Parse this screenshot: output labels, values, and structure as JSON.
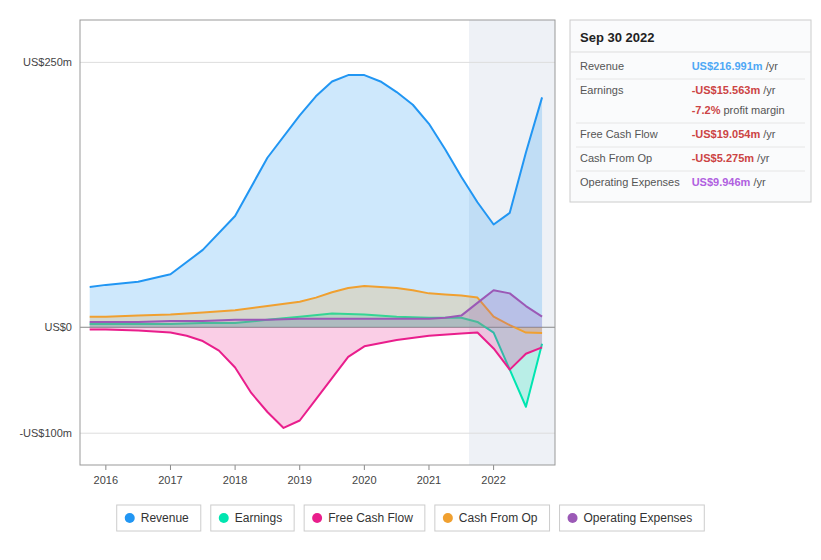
{
  "chart_data": {
    "type": "area",
    "xlim": [
      2015.6,
      2022.95
    ],
    "ylim": [
      -130,
      290
    ],
    "xticks": [
      2016,
      2017,
      2018,
      2019,
      2020,
      2021,
      2022
    ],
    "yticks": [
      {
        "value": -100,
        "label": "-US$100m"
      },
      {
        "value": 0,
        "label": "US$0"
      },
      {
        "value": 250,
        "label": "US$250m"
      }
    ],
    "grid": true,
    "legend": "bottom",
    "highlight_x": [
      2021.62,
      2022.95
    ],
    "series": [
      {
        "name": "Revenue",
        "color": "#2196F3",
        "x": [
          2015.75,
          2016.0,
          2016.5,
          2017.0,
          2017.5,
          2018.0,
          2018.5,
          2019.0,
          2019.25,
          2019.5,
          2019.75,
          2020.0,
          2020.25,
          2020.5,
          2020.75,
          2021.0,
          2021.25,
          2021.5,
          2021.75,
          2022.0,
          2022.25,
          2022.5,
          2022.75
        ],
        "values": [
          38,
          40,
          43,
          50,
          73,
          105,
          160,
          200,
          218,
          232,
          238,
          238,
          232,
          222,
          210,
          192,
          168,
          142,
          118,
          97,
          108,
          165,
          217
        ]
      },
      {
        "name": "Earnings",
        "color": "#00e5b0",
        "x": [
          2015.75,
          2016.0,
          2016.5,
          2017.0,
          2017.5,
          2018.0,
          2018.5,
          2019.0,
          2019.5,
          2020.0,
          2020.5,
          2021.0,
          2021.5,
          2021.75,
          2022.0,
          2022.25,
          2022.5,
          2022.75
        ],
        "values": [
          3,
          3,
          3,
          3,
          4,
          4,
          7,
          10,
          13,
          12,
          10,
          9,
          9,
          5,
          -5,
          -40,
          -75,
          -15.6
        ]
      },
      {
        "name": "Free Cash Flow",
        "color": "#e91e8c",
        "x": [
          2015.75,
          2016.0,
          2016.5,
          2017.0,
          2017.25,
          2017.5,
          2017.75,
          2018.0,
          2018.25,
          2018.5,
          2018.75,
          2019.0,
          2019.25,
          2019.5,
          2019.75,
          2020.0,
          2020.5,
          2021.0,
          2021.5,
          2021.75,
          2022.0,
          2022.25,
          2022.5,
          2022.75
        ],
        "values": [
          -2,
          -2,
          -3,
          -5,
          -8,
          -13,
          -22,
          -38,
          -62,
          -80,
          -95,
          -88,
          -68,
          -48,
          -28,
          -18,
          -12,
          -8,
          -6,
          -5,
          -20,
          -40,
          -25,
          -19
        ]
      },
      {
        "name": "Cash From Op",
        "color": "#f0a030",
        "x": [
          2015.75,
          2016.0,
          2016.5,
          2017.0,
          2017.5,
          2018.0,
          2018.5,
          2019.0,
          2019.25,
          2019.5,
          2019.75,
          2020.0,
          2020.25,
          2020.5,
          2020.75,
          2021.0,
          2021.25,
          2021.5,
          2021.75,
          2022.0,
          2022.25,
          2022.5,
          2022.75
        ],
        "values": [
          10,
          10,
          11,
          12,
          14,
          16,
          20,
          24,
          28,
          33,
          37,
          39,
          38,
          37,
          35,
          32,
          31,
          30,
          28,
          10,
          2,
          -5,
          -5.3
        ]
      },
      {
        "name": "Operating Expenses",
        "color": "#9b59b6",
        "x": [
          2015.75,
          2016.0,
          2016.5,
          2017.0,
          2017.5,
          2018.0,
          2018.5,
          2019.0,
          2019.5,
          2020.0,
          2020.5,
          2021.0,
          2021.25,
          2021.5,
          2021.75,
          2022.0,
          2022.25,
          2022.5,
          2022.75
        ],
        "values": [
          5,
          5,
          5,
          6,
          6,
          7,
          7,
          8,
          8,
          8,
          8,
          8,
          9,
          11,
          23,
          35,
          32,
          20,
          10
        ]
      }
    ],
    "annotations": [
      {
        "text": "Sep 30 2022"
      },
      {
        "label": "Revenue",
        "value": "US$216.991m",
        "suffix": " /yr",
        "color": "#4ea8f5"
      },
      {
        "label": "Earnings",
        "value": "-US$15.563m",
        "suffix": " /yr",
        "color": "#cc4444",
        "sub_value": "-7.2%",
        "sub_text": " profit margin"
      },
      {
        "label": "Free Cash Flow",
        "value": "-US$19.054m",
        "suffix": " /yr",
        "color": "#cc4444"
      },
      {
        "label": "Cash From Op",
        "value": "-US$5.275m",
        "suffix": " /yr",
        "color": "#cc4444"
      },
      {
        "label": "Operating Expenses",
        "value": "US$9.946m",
        "suffix": " /yr",
        "color": "#b060e0"
      }
    ]
  }
}
